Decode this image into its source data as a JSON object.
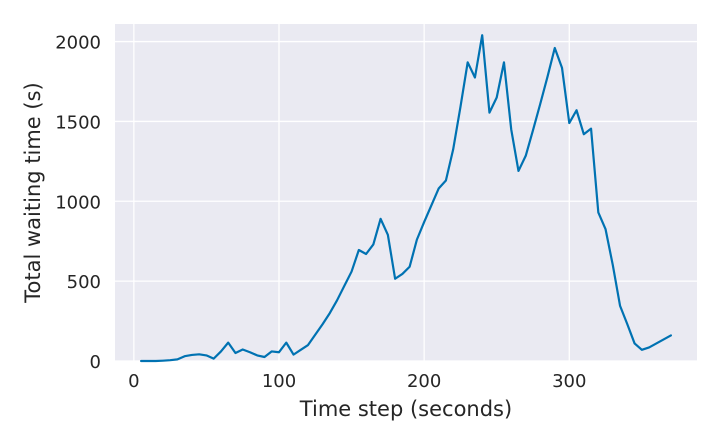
{
  "chart_data": {
    "type": "line",
    "title": "",
    "xlabel": "Time step (seconds)",
    "ylabel": "Total waiting time (s)",
    "xlim": [
      -13,
      388
    ],
    "ylim": [
      0,
      2110
    ],
    "x_ticks": [
      0,
      100,
      200,
      300
    ],
    "y_ticks": [
      0,
      500,
      1000,
      1500,
      2000
    ],
    "grid": true,
    "background": "#eaeaf2",
    "grid_color": "#ffffff",
    "series": [
      {
        "color": "#0072b2",
        "x": [
          5,
          10,
          15,
          20,
          25,
          30,
          35,
          40,
          45,
          50,
          55,
          60,
          65,
          70,
          75,
          80,
          85,
          90,
          95,
          100,
          105,
          110,
          115,
          120,
          125,
          130,
          135,
          140,
          145,
          150,
          155,
          160,
          165,
          170,
          175,
          180,
          185,
          190,
          195,
          200,
          205,
          210,
          215,
          220,
          225,
          230,
          235,
          240,
          245,
          250,
          255,
          260,
          265,
          270,
          275,
          280,
          285,
          290,
          295,
          300,
          305,
          310,
          315,
          320,
          325,
          330,
          335,
          340,
          345,
          350,
          355,
          360,
          365,
          370
        ],
        "y": [
          0,
          0,
          0,
          2,
          5,
          10,
          30,
          38,
          42,
          35,
          15,
          60,
          115,
          50,
          72,
          55,
          35,
          25,
          60,
          55,
          115,
          40,
          70,
          100,
          165,
          230,
          300,
          380,
          470,
          560,
          695,
          670,
          730,
          890,
          790,
          515,
          545,
          590,
          760,
          870,
          975,
          1080,
          1130,
          1325,
          1590,
          1870,
          1775,
          2040,
          1555,
          1650,
          1870,
          1450,
          1190,
          1285,
          1445,
          1610,
          1780,
          1960,
          1835,
          1490,
          1570,
          1420,
          1455,
          930,
          825,
          600,
          345,
          230,
          110,
          70,
          85,
          110,
          135,
          160
        ]
      }
    ]
  }
}
